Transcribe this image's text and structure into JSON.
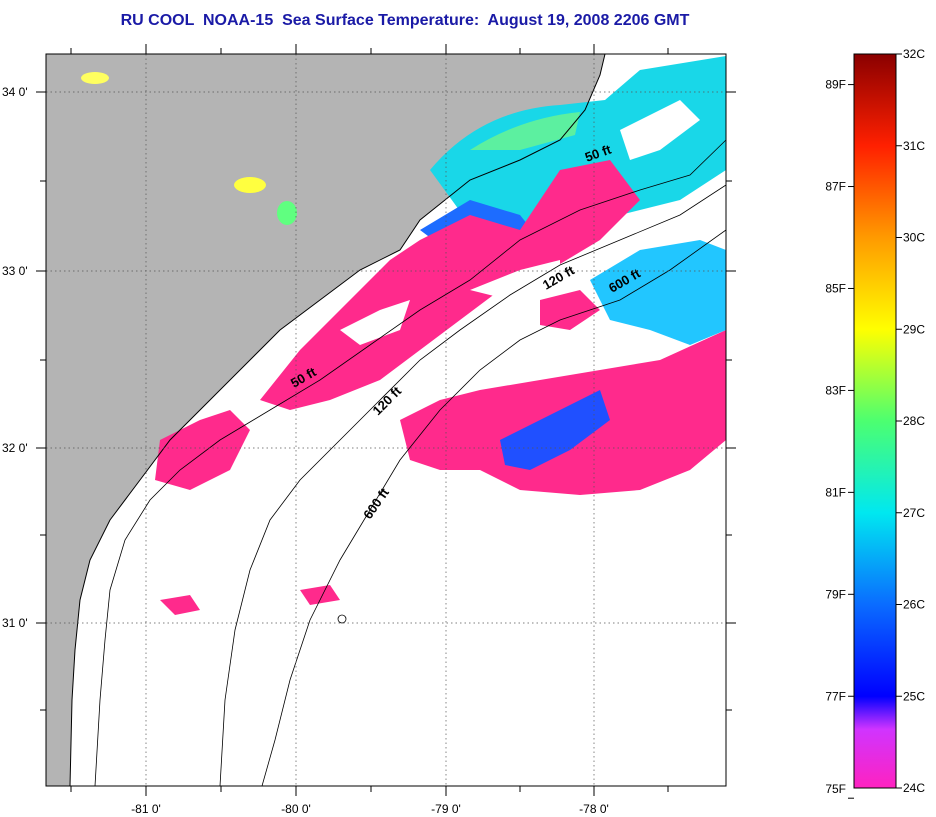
{
  "title": "RU COOL  NOAA-15  Sea Surface Temperature:  August 19, 2008 2206 GMT",
  "map": {
    "lat_ticks": [
      "34 0'",
      "33 0'",
      "32 0'",
      "31 0'"
    ],
    "lon_ticks": [
      "-81 0'",
      "-80 0'",
      "-79 0'",
      "-78 0'"
    ],
    "contour_labels": [
      "50 ft",
      "120 ft",
      "600 ft",
      "50 ft",
      "120 ft",
      "600 ft"
    ],
    "colors": {
      "land": "#b4b4b4",
      "no_data": "#ffffff",
      "sst_24c": "#ff2a8c",
      "sst_25c": "#2a2aff",
      "sst_27c": "#00e8f0",
      "sst_28c": "#60ff80"
    }
  },
  "colorbar": {
    "celsius": [
      "32C",
      "31C",
      "30C",
      "29C",
      "28C",
      "27C",
      "26C",
      "25C",
      "24C"
    ],
    "fahrenheit": [
      "89F",
      "87F",
      "85F",
      "83F",
      "81F",
      "79F",
      "77F",
      "75F"
    ],
    "stops": [
      "#ff22c0",
      "#c43cff",
      "#0000ff",
      "#0a6cff",
      "#00e8f0",
      "#4cff70",
      "#ffff00",
      "#ff9a00",
      "#ff2000",
      "#8a0000"
    ]
  }
}
